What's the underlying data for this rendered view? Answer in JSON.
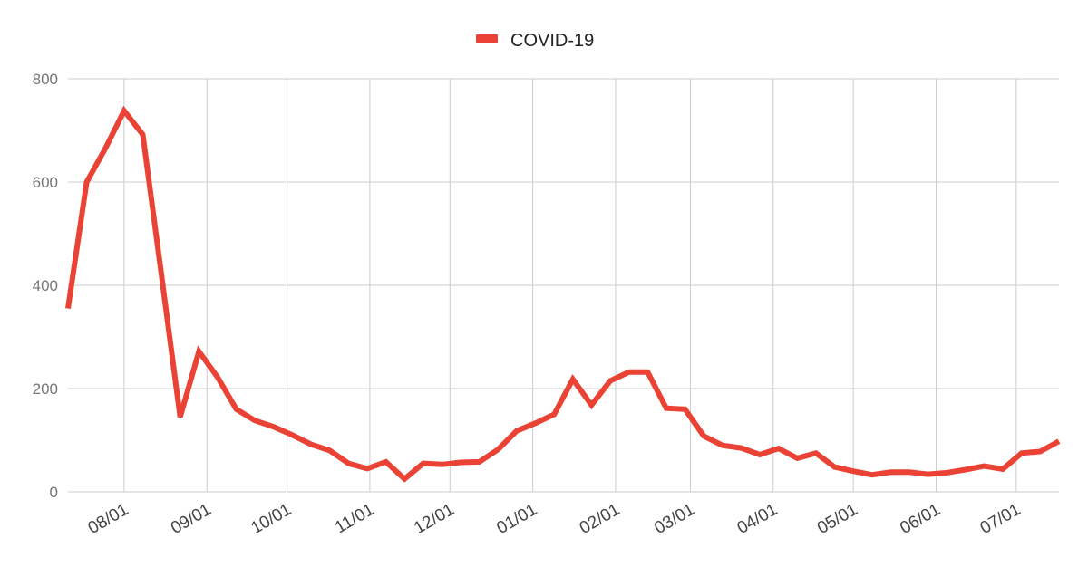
{
  "chart_data": {
    "type": "line",
    "legend": {
      "position": "top-center"
    },
    "grid": true,
    "ylim": [
      0,
      800
    ],
    "y_ticks": [
      "0",
      "200",
      "400",
      "600",
      "800"
    ],
    "x_tick_labels": [
      "08/01",
      "09/01",
      "10/01",
      "11/01",
      "12/01",
      "01/01",
      "02/01",
      "03/01",
      "04/01",
      "05/01",
      "06/01",
      "07/01"
    ],
    "series": [
      {
        "name": "COVID-19",
        "color": "#ea4335",
        "points": [
          [
            "07/11",
            355
          ],
          [
            "07/12",
            390
          ],
          [
            "07/18",
            600
          ],
          [
            "07/25",
            665
          ],
          [
            "08/01",
            738
          ],
          [
            "08/08",
            692
          ],
          [
            "08/15",
            420
          ],
          [
            "08/22",
            145
          ],
          [
            "08/29",
            272
          ],
          [
            "09/05",
            222
          ],
          [
            "09/12",
            160
          ],
          [
            "09/19",
            138
          ],
          [
            "09/26",
            126
          ],
          [
            "10/03",
            110
          ],
          [
            "10/10",
            92
          ],
          [
            "10/17",
            80
          ],
          [
            "10/24",
            55
          ],
          [
            "10/31",
            45
          ],
          [
            "11/07",
            58
          ],
          [
            "11/14",
            25
          ],
          [
            "11/21",
            55
          ],
          [
            "11/28",
            53
          ],
          [
            "12/05",
            57
          ],
          [
            "12/12",
            58
          ],
          [
            "12/19",
            82
          ],
          [
            "12/26",
            118
          ],
          [
            "01/02",
            133
          ],
          [
            "01/09",
            150
          ],
          [
            "01/16",
            218
          ],
          [
            "01/23",
            168
          ],
          [
            "01/30",
            215
          ],
          [
            "02/06",
            232
          ],
          [
            "02/13",
            232
          ],
          [
            "02/20",
            162
          ],
          [
            "02/27",
            160
          ],
          [
            "03/06",
            108
          ],
          [
            "03/13",
            90
          ],
          [
            "03/20",
            85
          ],
          [
            "03/27",
            72
          ],
          [
            "04/03",
            84
          ],
          [
            "04/10",
            65
          ],
          [
            "04/17",
            75
          ],
          [
            "04/24",
            48
          ],
          [
            "05/01",
            40
          ],
          [
            "05/08",
            33
          ],
          [
            "05/15",
            38
          ],
          [
            "05/22",
            38
          ],
          [
            "05/29",
            34
          ],
          [
            "06/05",
            37
          ],
          [
            "06/12",
            43
          ],
          [
            "06/19",
            50
          ],
          [
            "06/26",
            44
          ],
          [
            "07/03",
            75
          ],
          [
            "07/10",
            78
          ],
          [
            "07/17",
            98
          ]
        ]
      }
    ]
  }
}
